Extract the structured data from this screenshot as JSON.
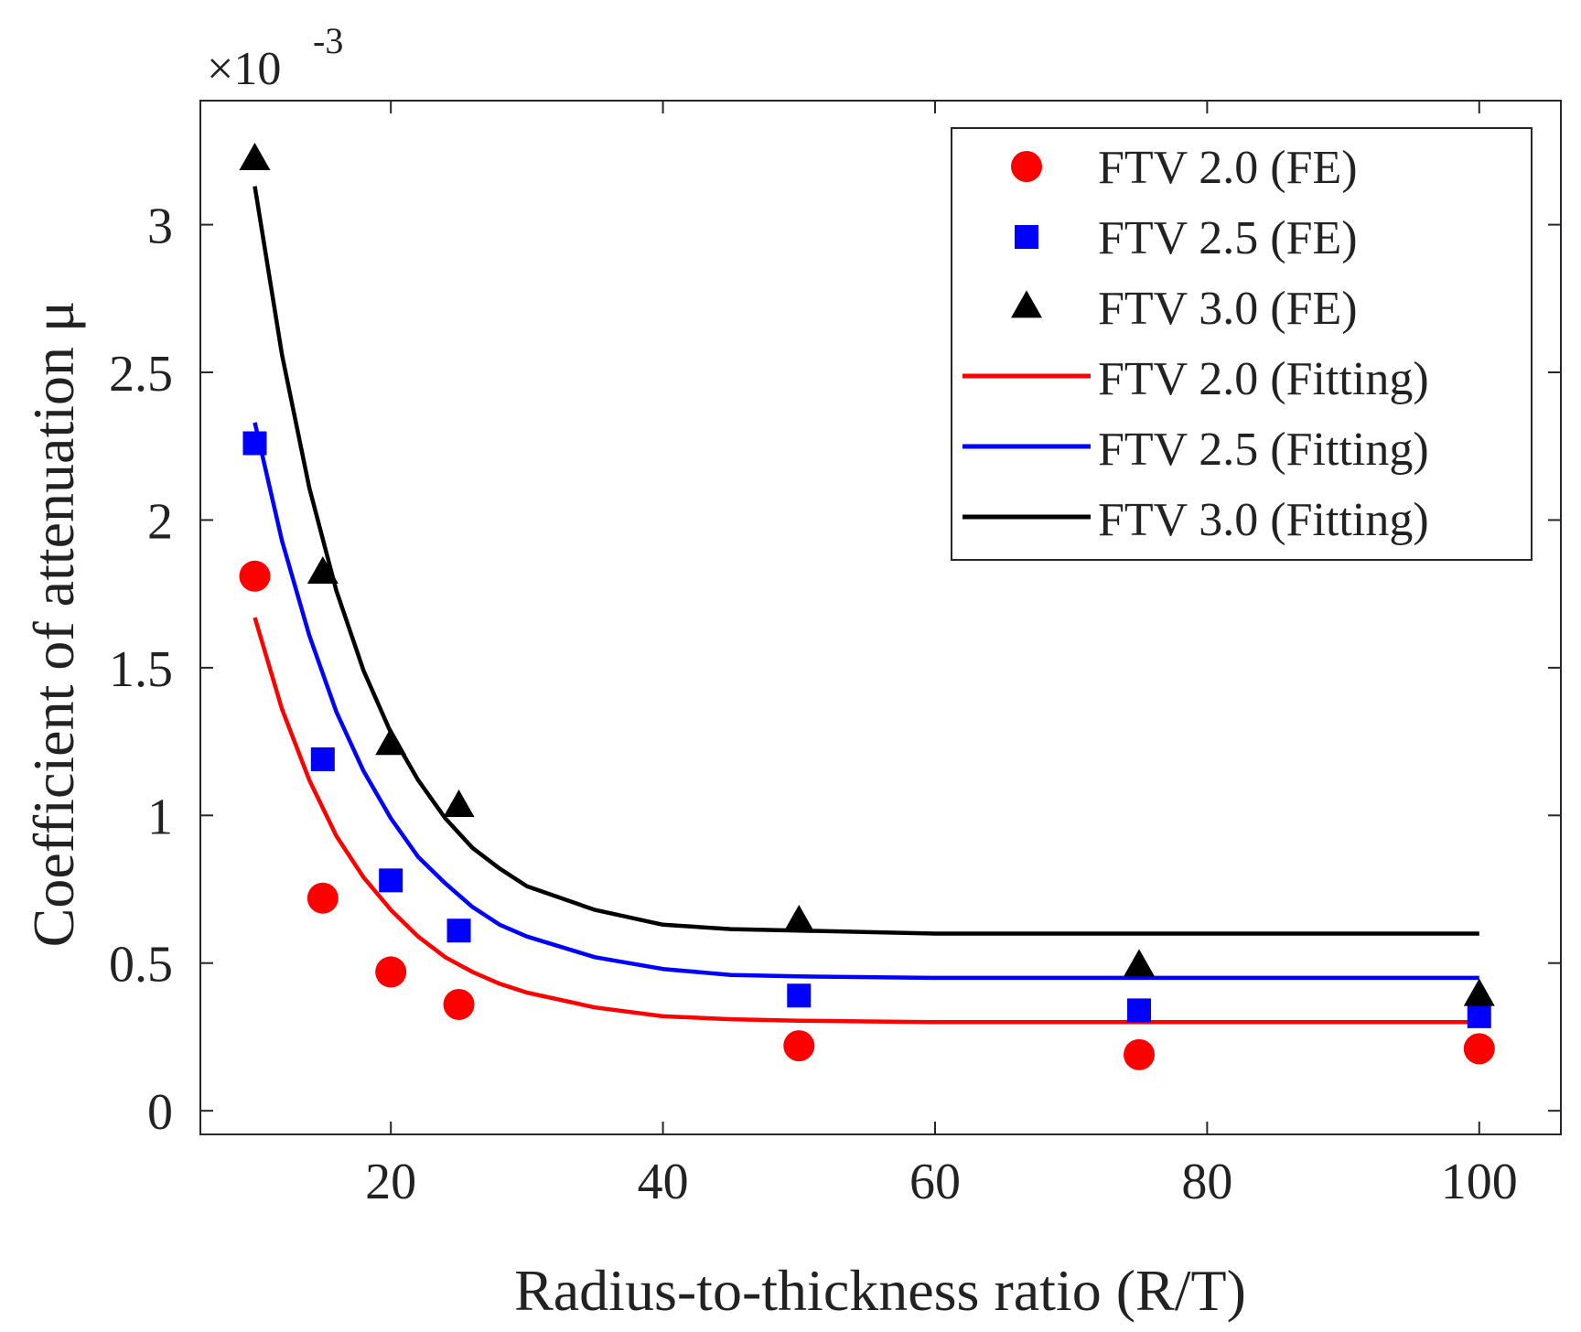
{
  "chart_data": {
    "type": "scatter",
    "title": "",
    "xlabel": "Radius-to-thickness ratio (R/T)",
    "ylabel": "Coefficient of attenuation μ",
    "y_exponent_label": "×10",
    "y_exponent_power": "-3",
    "xlim": [
      6,
      106
    ],
    "ylim": [
      -0.08,
      3.42
    ],
    "x_ticks": [
      20,
      40,
      60,
      80,
      100
    ],
    "x_tick_labels": [
      "20",
      "40",
      "60",
      "80",
      "100"
    ],
    "y_ticks": [
      0,
      0.5,
      1,
      1.5,
      2,
      2.5,
      3
    ],
    "y_tick_labels": [
      "0",
      "0.5",
      "1",
      "1.5",
      "2",
      "2.5",
      "3"
    ],
    "grid": false,
    "legend_position": "top-right",
    "fe_x": [
      10,
      15,
      20,
      25,
      50,
      75,
      100
    ],
    "series": [
      {
        "name": "FTV 2.0 (FE)",
        "kind": "marker",
        "marker": "circle",
        "color": "#ff0000",
        "x": [
          10,
          15,
          20,
          25,
          50,
          75,
          100
        ],
        "y": [
          1.81,
          0.72,
          0.47,
          0.36,
          0.22,
          0.19,
          0.21
        ]
      },
      {
        "name": "FTV 2.5 (FE)",
        "kind": "marker",
        "marker": "square",
        "color": "#0000ff",
        "x": [
          10,
          15,
          20,
          25,
          50,
          75,
          100
        ],
        "y": [
          2.26,
          1.19,
          0.78,
          0.61,
          0.39,
          0.34,
          0.32
        ]
      },
      {
        "name": "FTV 3.0 (FE)",
        "kind": "marker",
        "marker": "triangle",
        "color": "#000000",
        "x": [
          10,
          15,
          20,
          25,
          50,
          75,
          100
        ],
        "y": [
          3.22,
          1.82,
          1.24,
          1.03,
          0.64,
          0.49,
          0.39
        ]
      },
      {
        "name": "FTV 2.0 (Fitting)",
        "kind": "line",
        "color": "#ff0000",
        "x": [
          10,
          12,
          14,
          16,
          18,
          20,
          22,
          24,
          26,
          28,
          30,
          35,
          40,
          45,
          50,
          60,
          70,
          80,
          90,
          100
        ],
        "y": [
          1.67,
          1.36,
          1.12,
          0.93,
          0.79,
          0.68,
          0.59,
          0.52,
          0.47,
          0.43,
          0.4,
          0.35,
          0.32,
          0.31,
          0.305,
          0.3,
          0.3,
          0.3,
          0.3,
          0.3
        ]
      },
      {
        "name": "FTV 2.5 (Fitting)",
        "kind": "line",
        "color": "#0000ff",
        "x": [
          10,
          12,
          14,
          16,
          18,
          20,
          22,
          24,
          26,
          28,
          30,
          35,
          40,
          45,
          50,
          60,
          70,
          80,
          90,
          100
        ],
        "y": [
          2.33,
          1.93,
          1.61,
          1.35,
          1.15,
          0.99,
          0.86,
          0.77,
          0.69,
          0.63,
          0.59,
          0.52,
          0.48,
          0.46,
          0.455,
          0.45,
          0.45,
          0.45,
          0.45,
          0.45
        ]
      },
      {
        "name": "FTV 3.0 (Fitting)",
        "kind": "line",
        "color": "#000000",
        "x": [
          10,
          12,
          14,
          16,
          18,
          20,
          22,
          24,
          26,
          28,
          30,
          35,
          40,
          45,
          50,
          60,
          70,
          80,
          90,
          100
        ],
        "y": [
          3.13,
          2.56,
          2.11,
          1.76,
          1.49,
          1.28,
          1.12,
          0.99,
          0.89,
          0.82,
          0.76,
          0.68,
          0.63,
          0.615,
          0.61,
          0.6,
          0.6,
          0.6,
          0.6,
          0.6
        ]
      }
    ]
  }
}
